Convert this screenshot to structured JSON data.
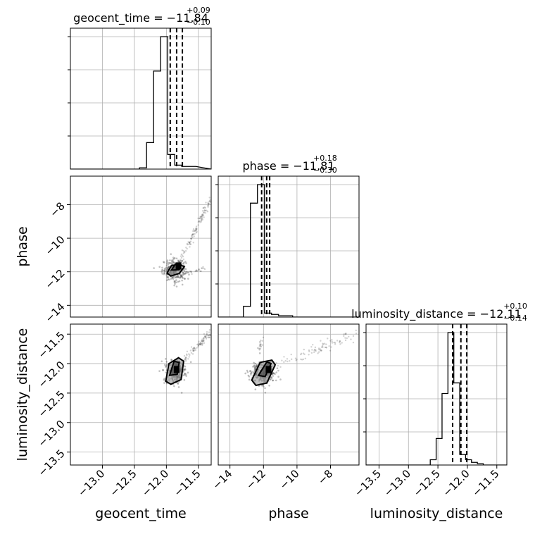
{
  "chart_data": {
    "type": "corner",
    "params": [
      "geocent_time",
      "phase",
      "luminosity_distance"
    ],
    "axis_labels": {
      "geocent_time": "geocent_time",
      "phase": "phase",
      "luminosity_distance": "luminosity_distance"
    },
    "ranges": {
      "geocent_time": [
        -13.5,
        -11.3
      ],
      "phase": [
        -14.7,
        -6.3
      ],
      "luminosity_distance": [
        -13.72,
        -11.33
      ]
    },
    "ticks": {
      "geocent_time": [
        {
          "v": -13.0,
          "label": "−13.0"
        },
        {
          "v": -12.5,
          "label": "−12.5"
        },
        {
          "v": -12.0,
          "label": "−12.0"
        },
        {
          "v": -11.5,
          "label": "−11.5"
        }
      ],
      "phase": [
        {
          "v": -14,
          "label": "−14"
        },
        {
          "v": -12,
          "label": "−12"
        },
        {
          "v": -10,
          "label": "−10"
        },
        {
          "v": -8,
          "label": "−8"
        }
      ],
      "luminosity_distance": [
        {
          "v": -13.5,
          "label": "−13.5"
        },
        {
          "v": -13.0,
          "label": "−13.0"
        },
        {
          "v": -12.5,
          "label": "−12.5"
        },
        {
          "v": -12.0,
          "label": "−12.0"
        },
        {
          "v": -11.5,
          "label": "−11.5"
        }
      ]
    },
    "grid": true,
    "titles": [
      {
        "name": "geocent_time",
        "median": "−11.84",
        "plus": "+0.09",
        "minus": "−0.10"
      },
      {
        "name": "phase",
        "median": "−11.81",
        "plus": "+0.18",
        "minus": "−0.30"
      },
      {
        "name": "luminosity_distance",
        "median": "−12.11",
        "plus": "+0.10",
        "minus": "−0.14"
      }
    ],
    "histograms": [
      {
        "param": "geocent_time",
        "bin_start": -12.42,
        "bin_width": 0.11,
        "counts": [
          0.01,
          0.2,
          0.74,
          1.0,
          0.11,
          0.03,
          0.02,
          0.02
        ],
        "quantiles": [
          -11.94,
          -11.84,
          -11.75
        ]
      },
      {
        "param": "phase",
        "bin_start": -13.2,
        "bin_width": 0.42,
        "counts": [
          0.08,
          0.86,
          1.0,
          0.03,
          0.02,
          0.01,
          0.01,
          0.0,
          0.0,
          0.0,
          0.0,
          0.0,
          0.0,
          0.0,
          0.0,
          0.0
        ],
        "quantiles": [
          -12.11,
          -11.81,
          -11.63
        ]
      },
      {
        "param": "luminosity_distance",
        "bin_start": -12.63,
        "bin_width": 0.1,
        "counts": [
          0.04,
          0.2,
          0.54,
          1.0,
          0.62,
          0.08,
          0.04,
          0.02,
          0.01,
          0.0
        ],
        "quantiles": [
          -12.25,
          -12.11,
          -12.01
        ]
      }
    ],
    "scatter_panels": [
      {
        "x": "geocent_time",
        "y": "phase",
        "blob": {
          "cx": -11.88,
          "cy": -11.9,
          "sx": 0.09,
          "sy": 0.32
        },
        "arms": [
          {
            "from": [
              -11.8,
              -11.5
            ],
            "to": [
              -11.3,
              -7.6
            ],
            "n": 110,
            "sx": 0.015,
            "sy": 0.08
          },
          {
            "from": [
              -11.78,
              -12.2
            ],
            "to": [
              -11.4,
              -11.8
            ],
            "n": 30,
            "sx": 0.015,
            "sy": 0.05
          }
        ],
        "contours": [
          [
            [
              -11.99,
              -12.08
            ],
            [
              -11.92,
              -11.62
            ],
            [
              -11.79,
              -11.57
            ],
            [
              -11.72,
              -11.7
            ],
            [
              -11.8,
              -12.1
            ],
            [
              -11.93,
              -12.25
            ]
          ],
          [
            [
              -11.92,
              -11.9
            ],
            [
              -11.86,
              -11.55
            ],
            [
              -11.77,
              -11.6
            ],
            [
              -11.8,
              -11.88
            ]
          ]
        ],
        "peak": [
          -11.81,
          -11.65
        ]
      },
      {
        "x": "geocent_time",
        "y": "luminosity_distance",
        "blob": {
          "cx": -11.86,
          "cy": -12.14,
          "sx": 0.08,
          "sy": 0.1
        },
        "arms": [
          {
            "from": [
              -11.78,
              -12.0
            ],
            "to": [
              -11.32,
              -11.48
            ],
            "n": 90,
            "sx": 0.02,
            "sy": 0.03
          }
        ],
        "contours": [
          [
            [
              -12.01,
              -12.3
            ],
            [
              -11.96,
              -12.0
            ],
            [
              -11.81,
              -11.9
            ],
            [
              -11.73,
              -11.96
            ],
            [
              -11.77,
              -12.27
            ],
            [
              -11.93,
              -12.35
            ]
          ],
          [
            [
              -11.95,
              -12.2
            ],
            [
              -11.88,
              -11.96
            ],
            [
              -11.8,
              -11.98
            ],
            [
              -11.83,
              -12.18
            ]
          ]
        ],
        "peak": [
          -11.84,
          -12.1
        ]
      },
      {
        "x": "phase",
        "y": "luminosity_distance",
        "blob": {
          "cx": -12.0,
          "cy": -12.17,
          "sx": 0.4,
          "sy": 0.1
        },
        "arms": [
          {
            "from": [
              -11.3,
              -12.05
            ],
            "to": [
              -6.8,
              -11.52
            ],
            "n": 90,
            "sx": 0.25,
            "sy": 0.04
          },
          {
            "from": [
              -12.3,
              -11.8
            ],
            "to": [
              -12.0,
              -11.5
            ],
            "n": 18,
            "sx": 0.05,
            "sy": 0.03
          }
        ],
        "contours": [
          [
            [
              -12.7,
              -12.28
            ],
            [
              -12.2,
              -11.98
            ],
            [
              -11.5,
              -11.94
            ],
            [
              -11.3,
              -12.02
            ],
            [
              -11.8,
              -12.33
            ],
            [
              -12.45,
              -12.37
            ]
          ],
          [
            [
              -12.3,
              -12.2
            ],
            [
              -11.8,
              -11.97
            ],
            [
              -11.55,
              -12.0
            ],
            [
              -11.9,
              -12.22
            ]
          ]
        ],
        "peak": [
          -11.7,
          -12.1
        ]
      }
    ]
  }
}
